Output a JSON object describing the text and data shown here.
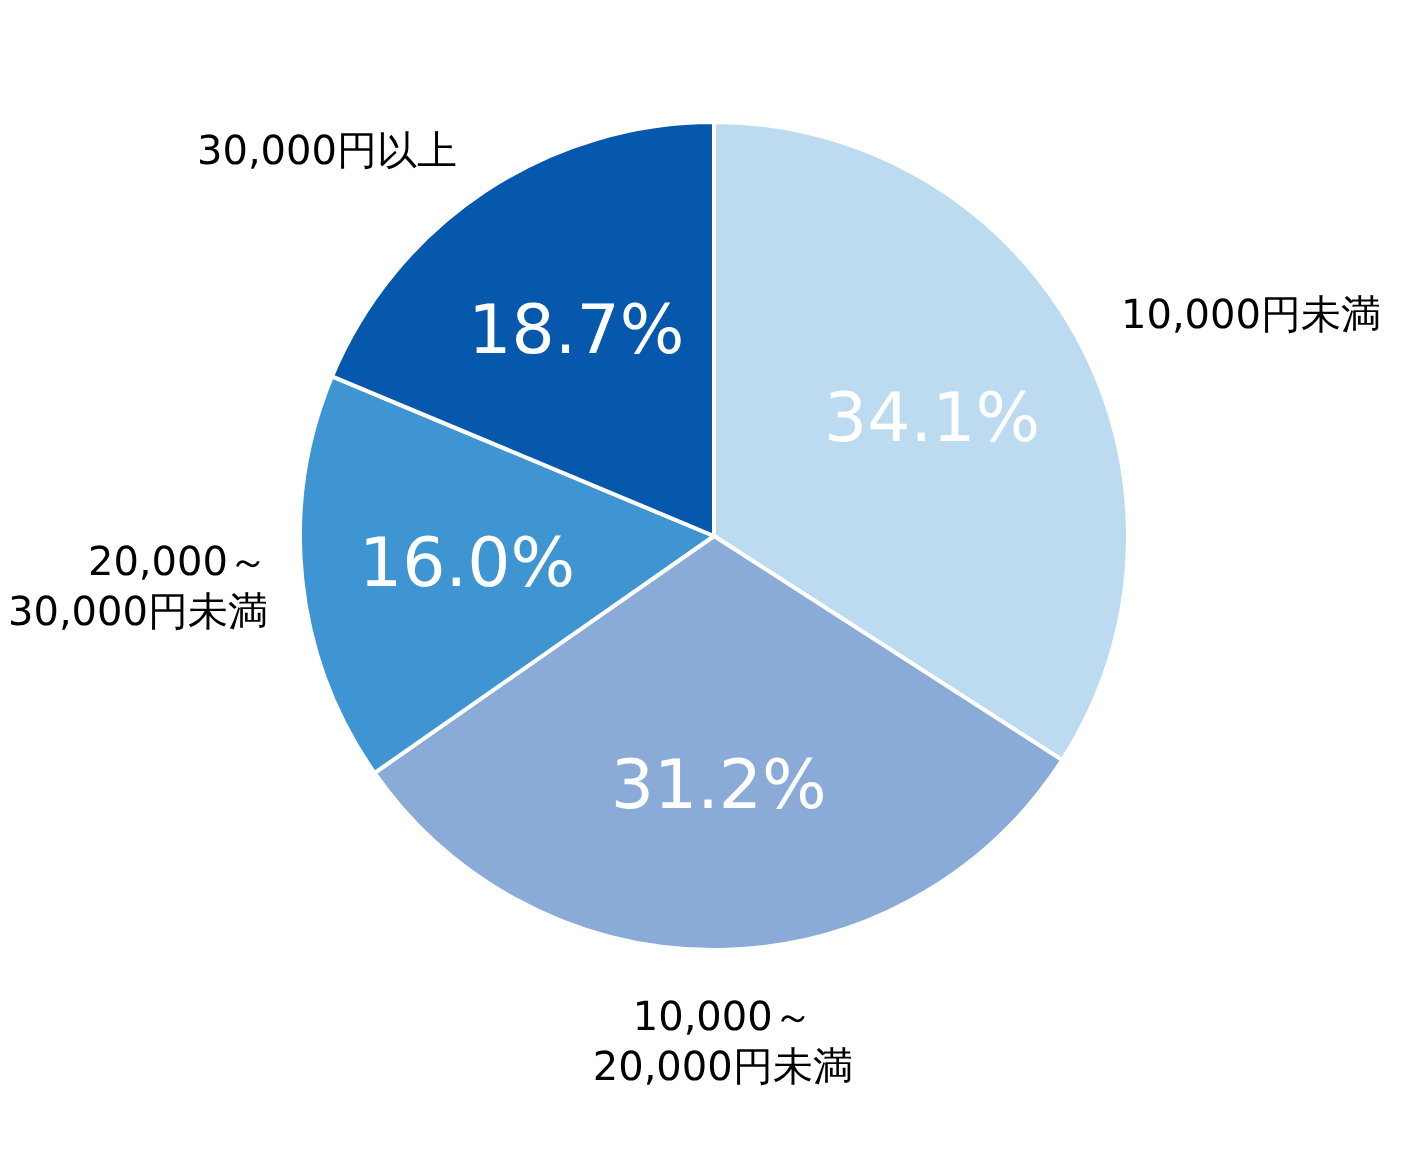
{
  "chart_data": {
    "type": "pie",
    "categories": [
      "10,000円未満",
      "10,000～\n20,000円未満",
      "20,000～\n30,000円未満",
      "30,000円以上"
    ],
    "values": [
      34.1,
      31.2,
      16.0,
      18.7
    ],
    "value_labels": [
      "34.1%",
      "31.2%",
      "16.0%",
      "18.7%"
    ],
    "colors": [
      "#bcdaf0",
      "#8aaad8",
      "#3f95d2",
      "#0558ab"
    ]
  }
}
